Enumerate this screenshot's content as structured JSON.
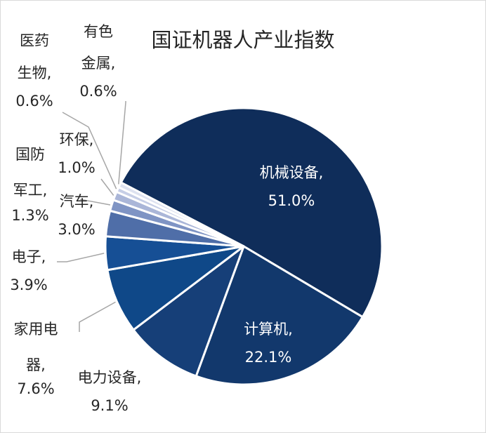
{
  "chart_data": {
    "type": "pie",
    "title": "国证机器人产业指数",
    "slices": [
      {
        "label": "机械设备",
        "value": 51.0,
        "display": "51.0%",
        "color": "#0f2d5a"
      },
      {
        "label": "计算机",
        "value": 22.1,
        "display": "22.1%",
        "color": "#12386c"
      },
      {
        "label": "电力设备",
        "value": 9.1,
        "display": "9.1%",
        "color": "#163f78"
      },
      {
        "label": "家用电器",
        "value": 7.6,
        "display": "7.6%",
        "color": "#0f4888"
      },
      {
        "label": "电子",
        "value": 3.9,
        "display": "3.9%",
        "color": "#164f95"
      },
      {
        "label": "汽车",
        "value": 3.0,
        "display": "3.0%",
        "color": "#4f6ea8"
      },
      {
        "label": "国防军工",
        "value": 1.3,
        "display": "1.3%",
        "color": "#7f94c4"
      },
      {
        "label": "环保",
        "value": 1.0,
        "display": "1.0%",
        "color": "#aab6d8"
      },
      {
        "label": "医药生物",
        "value": 0.6,
        "display": "0.6%",
        "color": "#c6cee6"
      },
      {
        "label": "有色金属",
        "value": 0.6,
        "display": "0.6%",
        "color": "#dde2f0"
      }
    ]
  }
}
